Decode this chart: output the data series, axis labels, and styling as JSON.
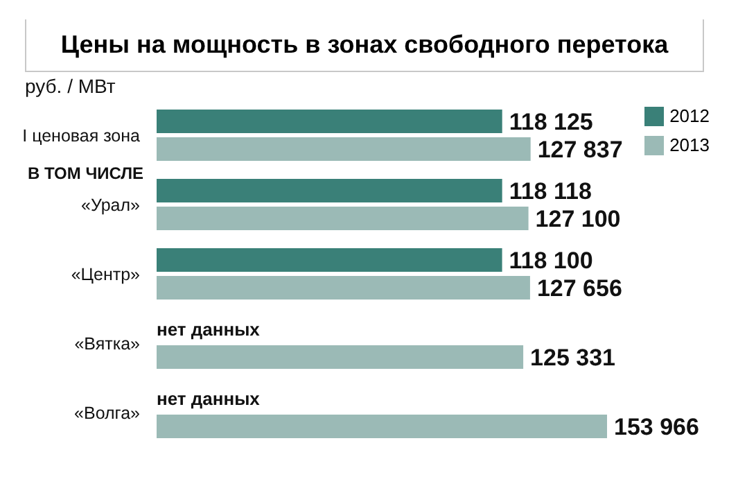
{
  "chart_data": {
    "type": "bar",
    "orientation": "horizontal",
    "title": "Цены на мощность в зонах свободного перетока",
    "xlabel": "руб. / МВт",
    "categories": [
      "I ценовая зона",
      "«Урал»",
      "«Центр»",
      "«Вятка»",
      "«Волга»"
    ],
    "series": [
      {
        "name": "2012",
        "color": "#3a8078",
        "values": [
          118125,
          118118,
          118100,
          null,
          null
        ],
        "value_labels": [
          "118 125",
          "118 118",
          "118 100",
          "нет данных",
          "нет данных"
        ]
      },
      {
        "name": "2013",
        "color": "#9bbab6",
        "values": [
          127837,
          127100,
          127656,
          125331,
          153966
        ],
        "value_labels": [
          "127 837",
          "127 100",
          "127 656",
          "125 331",
          "153 966"
        ]
      }
    ],
    "annotations": [
      "В ТОМ ЧИСЛЕ"
    ],
    "legend": "top right",
    "grid": false
  }
}
